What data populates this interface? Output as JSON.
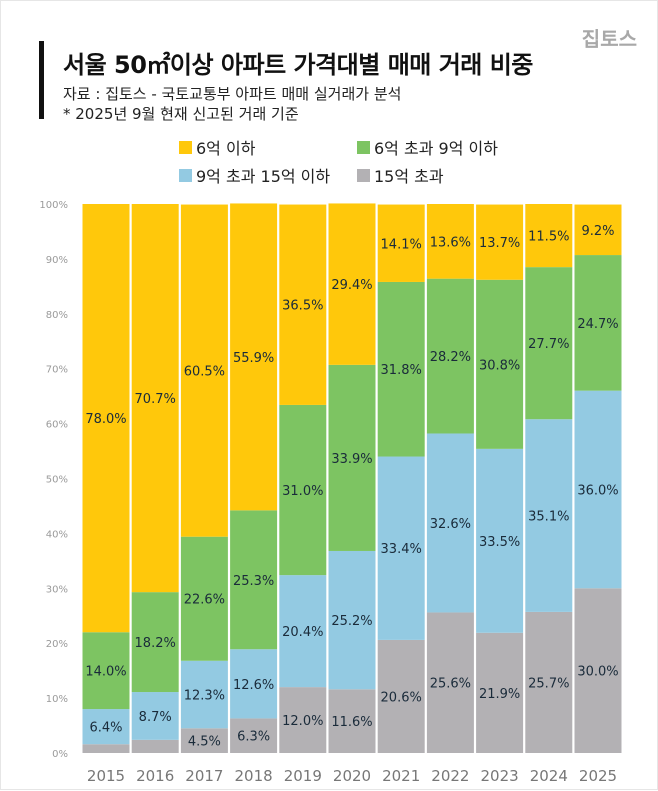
{
  "brand": "집토스",
  "chart_data": {
    "type": "bar",
    "stacked": true,
    "title": "서울 50㎡이상 아파트 가격대별 매매 거래 비중",
    "source": "자료 : 집토스 - 국토교통부 아파트 매매 실거래가 분석",
    "note": "* 2025년 9월 현재 신고된 거래 기준",
    "categories": [
      "2015",
      "2016",
      "2017",
      "2018",
      "2019",
      "2020",
      "2021",
      "2022",
      "2023",
      "2024",
      "2025"
    ],
    "ylim": [
      0,
      100
    ],
    "yticks": [
      "0%",
      "10%",
      "20%",
      "30%",
      "40%",
      "50%",
      "60%",
      "70%",
      "80%",
      "90%",
      "100%"
    ],
    "grid": false,
    "legend_position": "top",
    "series": [
      {
        "name": "15억 초과",
        "color": "#B3B1B4",
        "values": [
          1.6,
          2.4,
          4.5,
          6.3,
          12.0,
          11.6,
          20.6,
          25.6,
          21.9,
          25.7,
          30.0
        ],
        "labels": [
          null,
          null,
          "4.5%",
          "6.3%",
          "12.0%",
          "11.6%",
          "20.6%",
          "25.6%",
          "21.9%",
          "25.7%",
          "30.0%"
        ]
      },
      {
        "name": "9억 초과 15억 이하",
        "color": "#93CAE2",
        "values": [
          6.4,
          8.7,
          12.3,
          12.6,
          20.4,
          25.2,
          33.4,
          32.6,
          33.5,
          35.1,
          36.0
        ],
        "labels": [
          "6.4%",
          "8.7%",
          "12.3%",
          "12.6%",
          "20.4%",
          "25.2%",
          "33.4%",
          "32.6%",
          "33.5%",
          "35.1%",
          "36.0%"
        ]
      },
      {
        "name": "6억 초과 9억 이하",
        "color": "#7DC462",
        "values": [
          14.0,
          18.2,
          22.6,
          25.3,
          31.0,
          33.9,
          31.8,
          28.2,
          30.8,
          27.7,
          24.7
        ],
        "labels": [
          "14.0%",
          "18.2%",
          "22.6%",
          "25.3%",
          "31.0%",
          "33.9%",
          "31.8%",
          "28.2%",
          "30.8%",
          "27.7%",
          "24.7%"
        ]
      },
      {
        "name": "6억 이하",
        "color": "#FFC80B",
        "values": [
          78.0,
          70.7,
          60.5,
          55.9,
          36.5,
          29.4,
          14.1,
          13.6,
          13.7,
          11.5,
          9.2
        ],
        "labels": [
          "78.0%",
          "70.7%",
          "60.5%",
          "55.9%",
          "36.5%",
          "29.4%",
          "14.1%",
          "13.6%",
          "13.7%",
          "11.5%",
          "9.2%"
        ]
      }
    ]
  }
}
